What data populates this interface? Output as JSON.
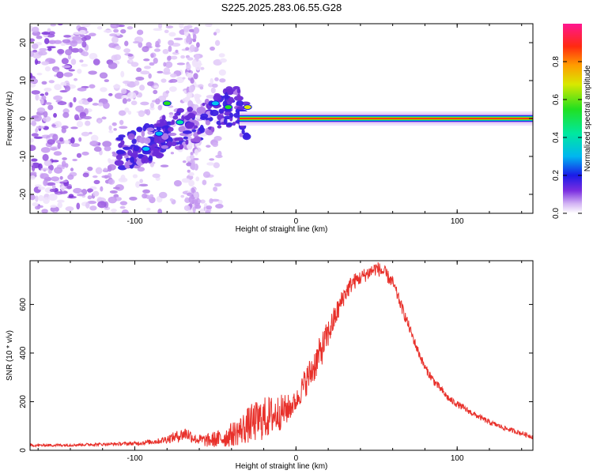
{
  "title": "S225.2025.283.06.55.G28",
  "chart_data": [
    {
      "type": "heatmap",
      "title": "S225.2025.283.06.55.G28",
      "xlabel": "Height of straight line (km)",
      "ylabel": "Frequency (Hz)",
      "xlim": [
        -165,
        147
      ],
      "ylim": [
        -25,
        25
      ],
      "xticks": [
        -100,
        0,
        100
      ],
      "yticks": [
        -20,
        -10,
        0,
        10,
        20
      ],
      "colorbar": {
        "label": "Normalized spectral amplitude",
        "range": [
          0,
          1
        ],
        "ticks": [
          0.0,
          0.2,
          0.4,
          0.6,
          0.8
        ]
      },
      "features": {
        "carrier_frequency_hz": 0,
        "carrier_start_km": -35,
        "noise_region_km": [
          -165,
          -45
        ]
      }
    },
    {
      "type": "line",
      "xlabel": "Height of straight line (km)",
      "ylabel": "SNR (10 * v/v)",
      "xlim": [
        -165,
        147
      ],
      "ylim": [
        0,
        780
      ],
      "xticks": [
        -100,
        0,
        100
      ],
      "yticks": [
        0,
        200,
        400,
        600
      ],
      "series": [
        {
          "name": "SNR",
          "color": "#e8302a",
          "x": [
            -165,
            -140,
            -120,
            -100,
            -85,
            -75,
            -68,
            -62,
            -55,
            -45,
            -35,
            -28,
            -20,
            -12,
            -5,
            0,
            5,
            10,
            15,
            20,
            25,
            30,
            35,
            40,
            45,
            50,
            55,
            60,
            65,
            70,
            75,
            80,
            85,
            90,
            95,
            100,
            110,
            120,
            130,
            140,
            147
          ],
          "values": [
            20,
            22,
            25,
            28,
            38,
            55,
            70,
            45,
            40,
            50,
            80,
            110,
            130,
            150,
            170,
            200,
            270,
            330,
            400,
            480,
            560,
            640,
            690,
            710,
            730,
            750,
            730,
            690,
            600,
            510,
            420,
            340,
            290,
            250,
            210,
            190,
            150,
            115,
            90,
            70,
            55
          ],
          "noise": [
            5,
            6,
            6,
            8,
            12,
            22,
            30,
            20,
            28,
            40,
            60,
            80,
            90,
            80,
            60,
            40,
            60,
            70,
            70,
            60,
            50,
            40,
            35,
            30,
            30,
            30,
            30,
            25,
            25,
            22,
            20,
            18,
            18,
            16,
            15,
            14,
            12,
            11,
            10,
            10,
            10
          ]
        }
      ]
    }
  ]
}
